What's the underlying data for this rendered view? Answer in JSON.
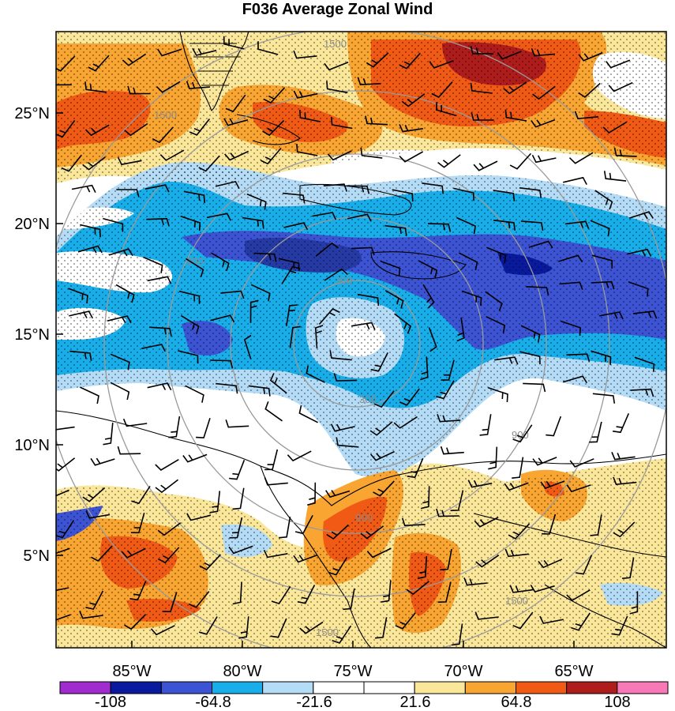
{
  "title": "F036 Average Zonal Wind",
  "chart_data": {
    "type": "heatmap",
    "title": "F036 Average Zonal Wind",
    "lat_ticks": [
      "25°N",
      "20°N",
      "15°N",
      "10°N",
      "5°N"
    ],
    "lon_ticks": [
      "85°W",
      "80°W",
      "75°W",
      "70°W",
      "65°W"
    ],
    "range_ring_labels": [
      "300",
      "900",
      "1500"
    ],
    "colorbar": {
      "labels": [
        "-108",
        "-64.8",
        "-21.6",
        "21.6",
        "64.8",
        "108"
      ],
      "colors": [
        "#a02ccf",
        "#0a1a9e",
        "#3c54d4",
        "#18aeea",
        "#b4dcf6",
        "#ffffff",
        "#ffffff",
        "#fbe79a",
        "#f9a532",
        "#f15a14",
        "#ae1c1c",
        "#f978b8"
      ]
    },
    "field_colors": {
      "strong_negative": "#3c54d4",
      "negative": "#18aeea",
      "weak_negative": "#b4dcf6",
      "neutral": "#ffffff",
      "weak_positive": "#fbe79a",
      "positive": "#f9a532",
      "strong_positive": "#f15a14",
      "max_positive": "#ae1c1c"
    }
  }
}
